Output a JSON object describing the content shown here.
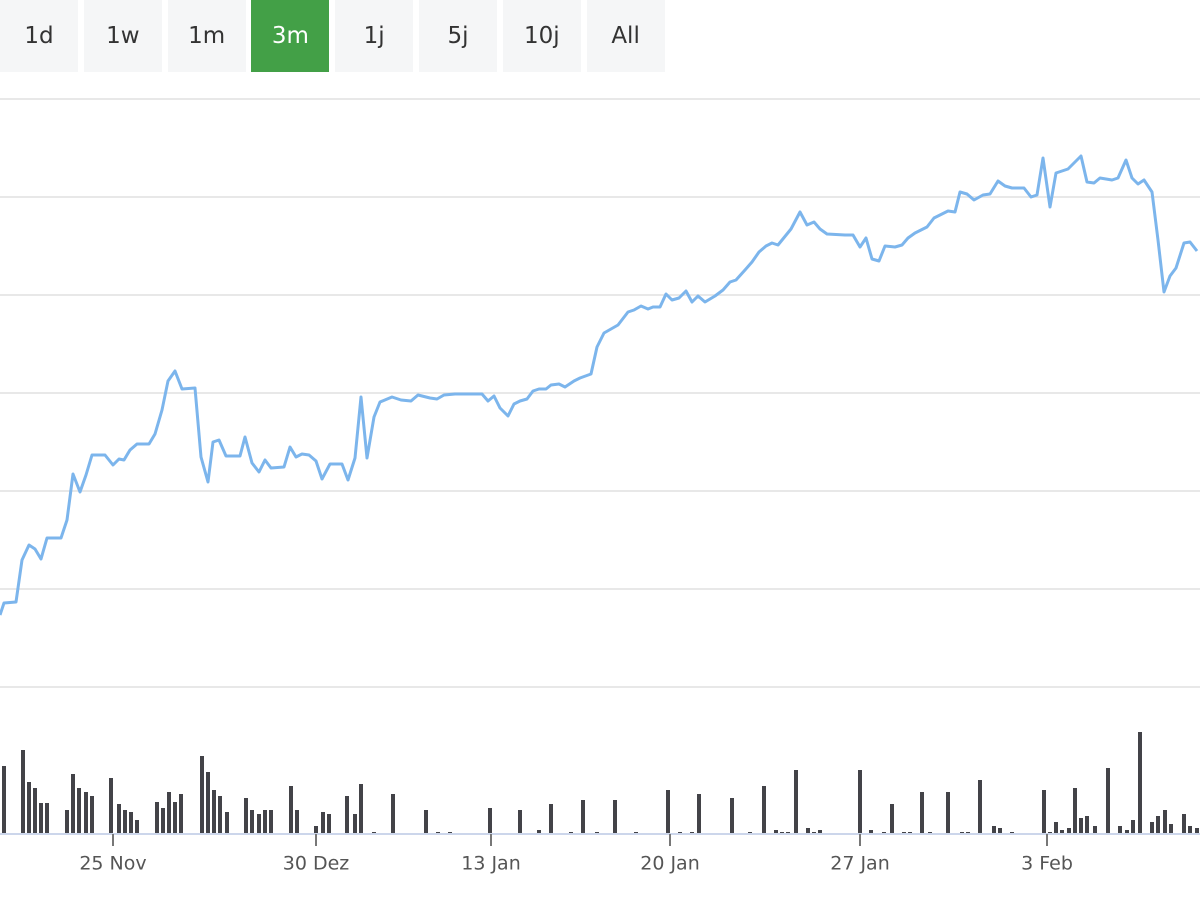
{
  "ranges": [
    "1d",
    "1w",
    "1m",
    "3m",
    "1j",
    "5j",
    "10j",
    "All"
  ],
  "active_range": "3m",
  "chart_data": [
    {
      "type": "line",
      "color": "#7cb5ec",
      "grid": true,
      "xlim": [
        0,
        1200
      ],
      "ylim": [
        0,
        588
      ],
      "yticks": [
        0,
        98,
        196,
        294,
        392,
        490,
        588
      ],
      "xticks": [
        {
          "value": 113,
          "label": "25 Nov"
        },
        {
          "value": 316,
          "label": "30 Dez"
        },
        {
          "value": 491,
          "label": "13 Jan"
        },
        {
          "value": 670,
          "label": "20 Jan"
        },
        {
          "value": 860,
          "label": "27 Jan"
        },
        {
          "value": 1047,
          "label": "3 Feb"
        }
      ],
      "x": [
        0,
        4,
        16,
        22,
        29,
        35,
        41,
        47,
        61,
        67,
        73,
        80,
        86,
        92,
        105,
        113,
        119,
        124,
        130,
        137,
        149,
        155,
        162,
        168,
        175,
        182,
        195,
        201,
        208,
        213,
        219,
        226,
        240,
        245,
        252,
        259,
        265,
        271,
        284,
        290,
        296,
        302,
        309,
        316,
        322,
        330,
        342,
        348,
        355,
        361,
        367,
        374,
        380,
        392,
        401,
        411,
        418,
        430,
        437,
        444,
        455,
        482,
        488,
        494,
        500,
        508,
        514,
        520,
        527,
        533,
        539,
        546,
        551,
        559,
        565,
        574,
        580,
        591,
        597,
        604,
        618,
        628,
        634,
        641,
        648,
        653,
        660,
        666,
        672,
        679,
        686,
        692,
        698,
        705,
        715,
        723,
        730,
        736,
        745,
        752,
        759,
        766,
        772,
        778,
        791,
        800,
        807,
        814,
        820,
        827,
        845,
        853,
        860,
        866,
        872,
        879,
        885,
        895,
        902,
        908,
        915,
        927,
        934,
        948,
        955,
        960,
        967,
        974,
        983,
        990,
        998,
        1005,
        1012,
        1024,
        1031,
        1037,
        1043,
        1050,
        1056,
        1068,
        1081,
        1087,
        1094,
        1100,
        1112,
        1118,
        1126,
        1132,
        1138,
        1144,
        1152,
        1158,
        1164,
        1170,
        1176,
        1184,
        1190,
        1197
      ],
      "values": [
        72,
        84,
        85,
        127,
        142,
        138,
        128,
        149,
        149,
        167,
        213,
        195,
        212,
        232,
        232,
        222,
        228,
        227,
        237,
        243,
        243,
        253,
        277,
        306,
        316,
        298,
        299,
        230,
        205,
        245,
        247,
        231,
        231,
        250,
        224,
        215,
        227,
        219,
        220,
        240,
        230,
        233,
        232,
        226,
        208,
        223,
        223,
        207,
        229,
        290,
        229,
        270,
        285,
        290,
        287,
        286,
        292,
        289,
        288,
        292,
        293,
        293,
        286,
        291,
        279,
        271,
        283,
        286,
        288,
        296,
        298,
        298,
        302,
        303,
        300,
        306,
        309,
        313,
        340,
        354,
        362,
        375,
        377,
        381,
        378,
        380,
        380,
        393,
        387,
        389,
        396,
        385,
        391,
        385,
        391,
        397,
        405,
        407,
        417,
        425,
        435,
        441,
        444,
        442,
        458,
        475,
        462,
        465,
        458,
        453,
        452,
        452,
        440,
        449,
        428,
        426,
        441,
        440,
        442,
        449,
        454,
        460,
        469,
        476,
        475,
        495,
        493,
        487,
        492,
        493,
        506,
        501,
        499,
        499,
        490,
        492,
        529,
        480,
        514,
        518,
        531,
        505,
        504,
        509,
        507,
        509,
        527,
        509,
        503,
        507,
        495,
        447,
        395,
        411,
        419,
        444,
        445,
        436
      ]
    },
    {
      "type": "bar",
      "color": "#434348",
      "xlim": [
        0,
        1200
      ],
      "ylim": [
        0,
        146
      ],
      "x": [
        4,
        23,
        29,
        35,
        41,
        47,
        67,
        73,
        79,
        86,
        92,
        111,
        119,
        125,
        131,
        137,
        157,
        163,
        169,
        175,
        181,
        202,
        208,
        214,
        220,
        227,
        246,
        252,
        259,
        265,
        271,
        291,
        297,
        316,
        323,
        329,
        347,
        355,
        361,
        374,
        393,
        426,
        438,
        450,
        490,
        520,
        539,
        551,
        571,
        583,
        597,
        615,
        636,
        668,
        680,
        692,
        699,
        732,
        750,
        764,
        776,
        782,
        788,
        796,
        808,
        814,
        820,
        860,
        871,
        884,
        892,
        904,
        910,
        922,
        930,
        948,
        962,
        968,
        980,
        994,
        1000,
        1012,
        1044,
        1050,
        1056,
        1062,
        1069,
        1075,
        1081,
        1087,
        1095,
        1108,
        1120,
        1127,
        1133,
        1140,
        1152,
        1158,
        1165,
        1171,
        1184,
        1190,
        1197
      ],
      "values": [
        67,
        83,
        51,
        45,
        30,
        30,
        23,
        59,
        45,
        41,
        37,
        55,
        29,
        23,
        21,
        13,
        31,
        25,
        41,
        31,
        39,
        77,
        61,
        43,
        37,
        21,
        35,
        23,
        19,
        23,
        23,
        47,
        23,
        7,
        21,
        19,
        37,
        19,
        49,
        1,
        39,
        23,
        1,
        1,
        25,
        23,
        3,
        29,
        1,
        33,
        1,
        33,
        1,
        43,
        1,
        1,
        39,
        35,
        1,
        47,
        3,
        1,
        1,
        63,
        5,
        1,
        3,
        63,
        3,
        1,
        29,
        1,
        1,
        41,
        1,
        41,
        1,
        1,
        53,
        7,
        5,
        1,
        43,
        1,
        11,
        3,
        5,
        45,
        15,
        17,
        7,
        65,
        7,
        3,
        13,
        101,
        11,
        17,
        23,
        9,
        19,
        7,
        5
      ]
    }
  ]
}
